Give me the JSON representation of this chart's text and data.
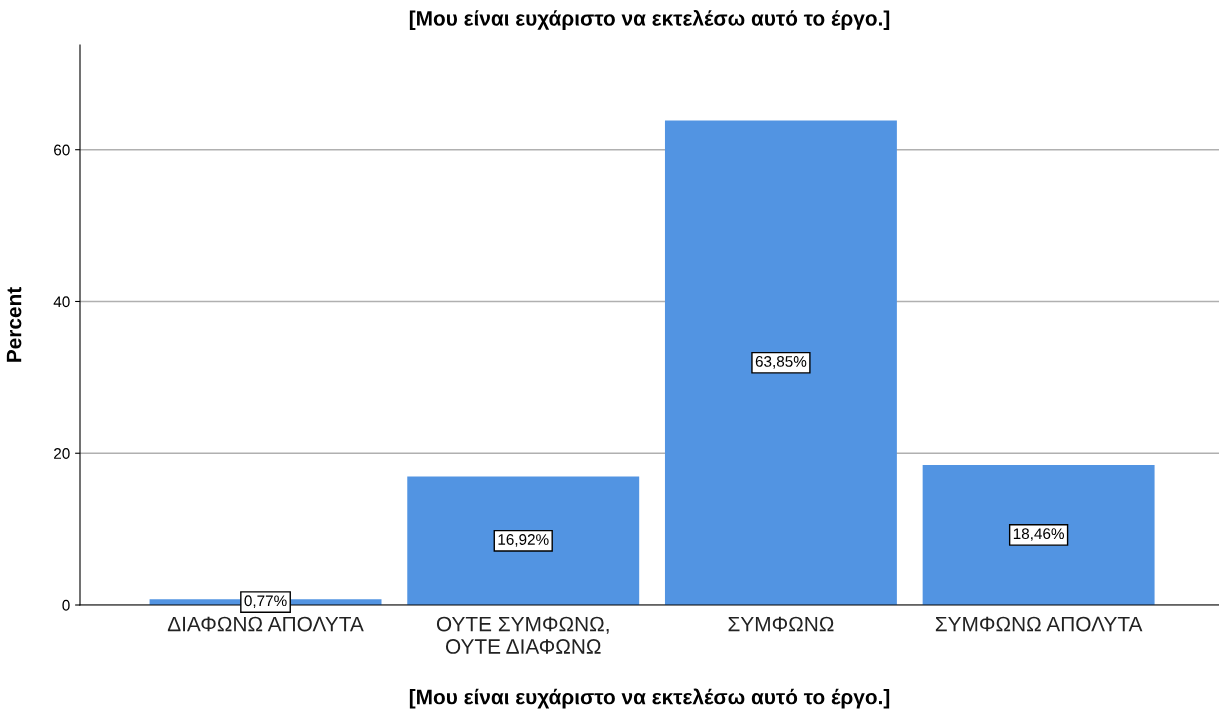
{
  "chart_data": {
    "type": "bar",
    "title": "[Μου είναι ευχάριστο να εκτελέσω αυτό το έργο.]",
    "xlabel": "[Μου είναι ευχάριστο να εκτελέσω αυτό το έργο.]",
    "ylabel": "Percent",
    "categories": [
      "ΔΙΑΦΩΝΩ ΑΠΟΛΥΤΑ",
      "ΟΥΤΕ ΣΥΜΦΩΝΩ,\nΟΥΤΕ ΔΙΑΦΩΝΩ",
      "ΣΥΜΦΩΝΩ",
      "ΣΥΜΦΩΝΩ ΑΠΟΛΥΤΑ"
    ],
    "values": [
      0.77,
      16.92,
      63.85,
      18.46
    ],
    "value_labels": [
      "0,77%",
      "16,92%",
      "63,85%",
      "18,46%"
    ],
    "color": "#5294e2",
    "ylim": [
      0,
      73.8
    ],
    "yticks": [
      0,
      20,
      40,
      60
    ],
    "grid": "y"
  }
}
